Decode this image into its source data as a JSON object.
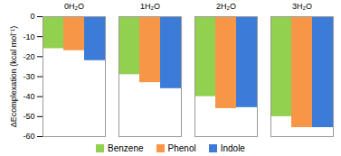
{
  "chart_data": {
    "type": "bar",
    "y_label": "ΔEcomplexation (kcal mol⁻¹)",
    "categories": [
      "0H₂O",
      "1H₂O",
      "2H₂O",
      "3H₂O"
    ],
    "series": [
      {
        "name": "Benzene",
        "color": "#92d050",
        "values": [
          -16,
          -29,
          -40,
          -50
        ]
      },
      {
        "name": "Phenol",
        "color": "#f79646",
        "values": [
          -17,
          -33,
          -46,
          -55.5
        ]
      },
      {
        "name": "Indole",
        "color": "#3d7bd9",
        "values": [
          -22,
          -36,
          -45.5,
          -55.5
        ]
      }
    ],
    "ylim": [
      -60,
      0
    ],
    "yticks": [
      0,
      -10,
      -20,
      -30,
      -40,
      -50,
      -60
    ],
    "grid": false,
    "legend": "bottom"
  }
}
